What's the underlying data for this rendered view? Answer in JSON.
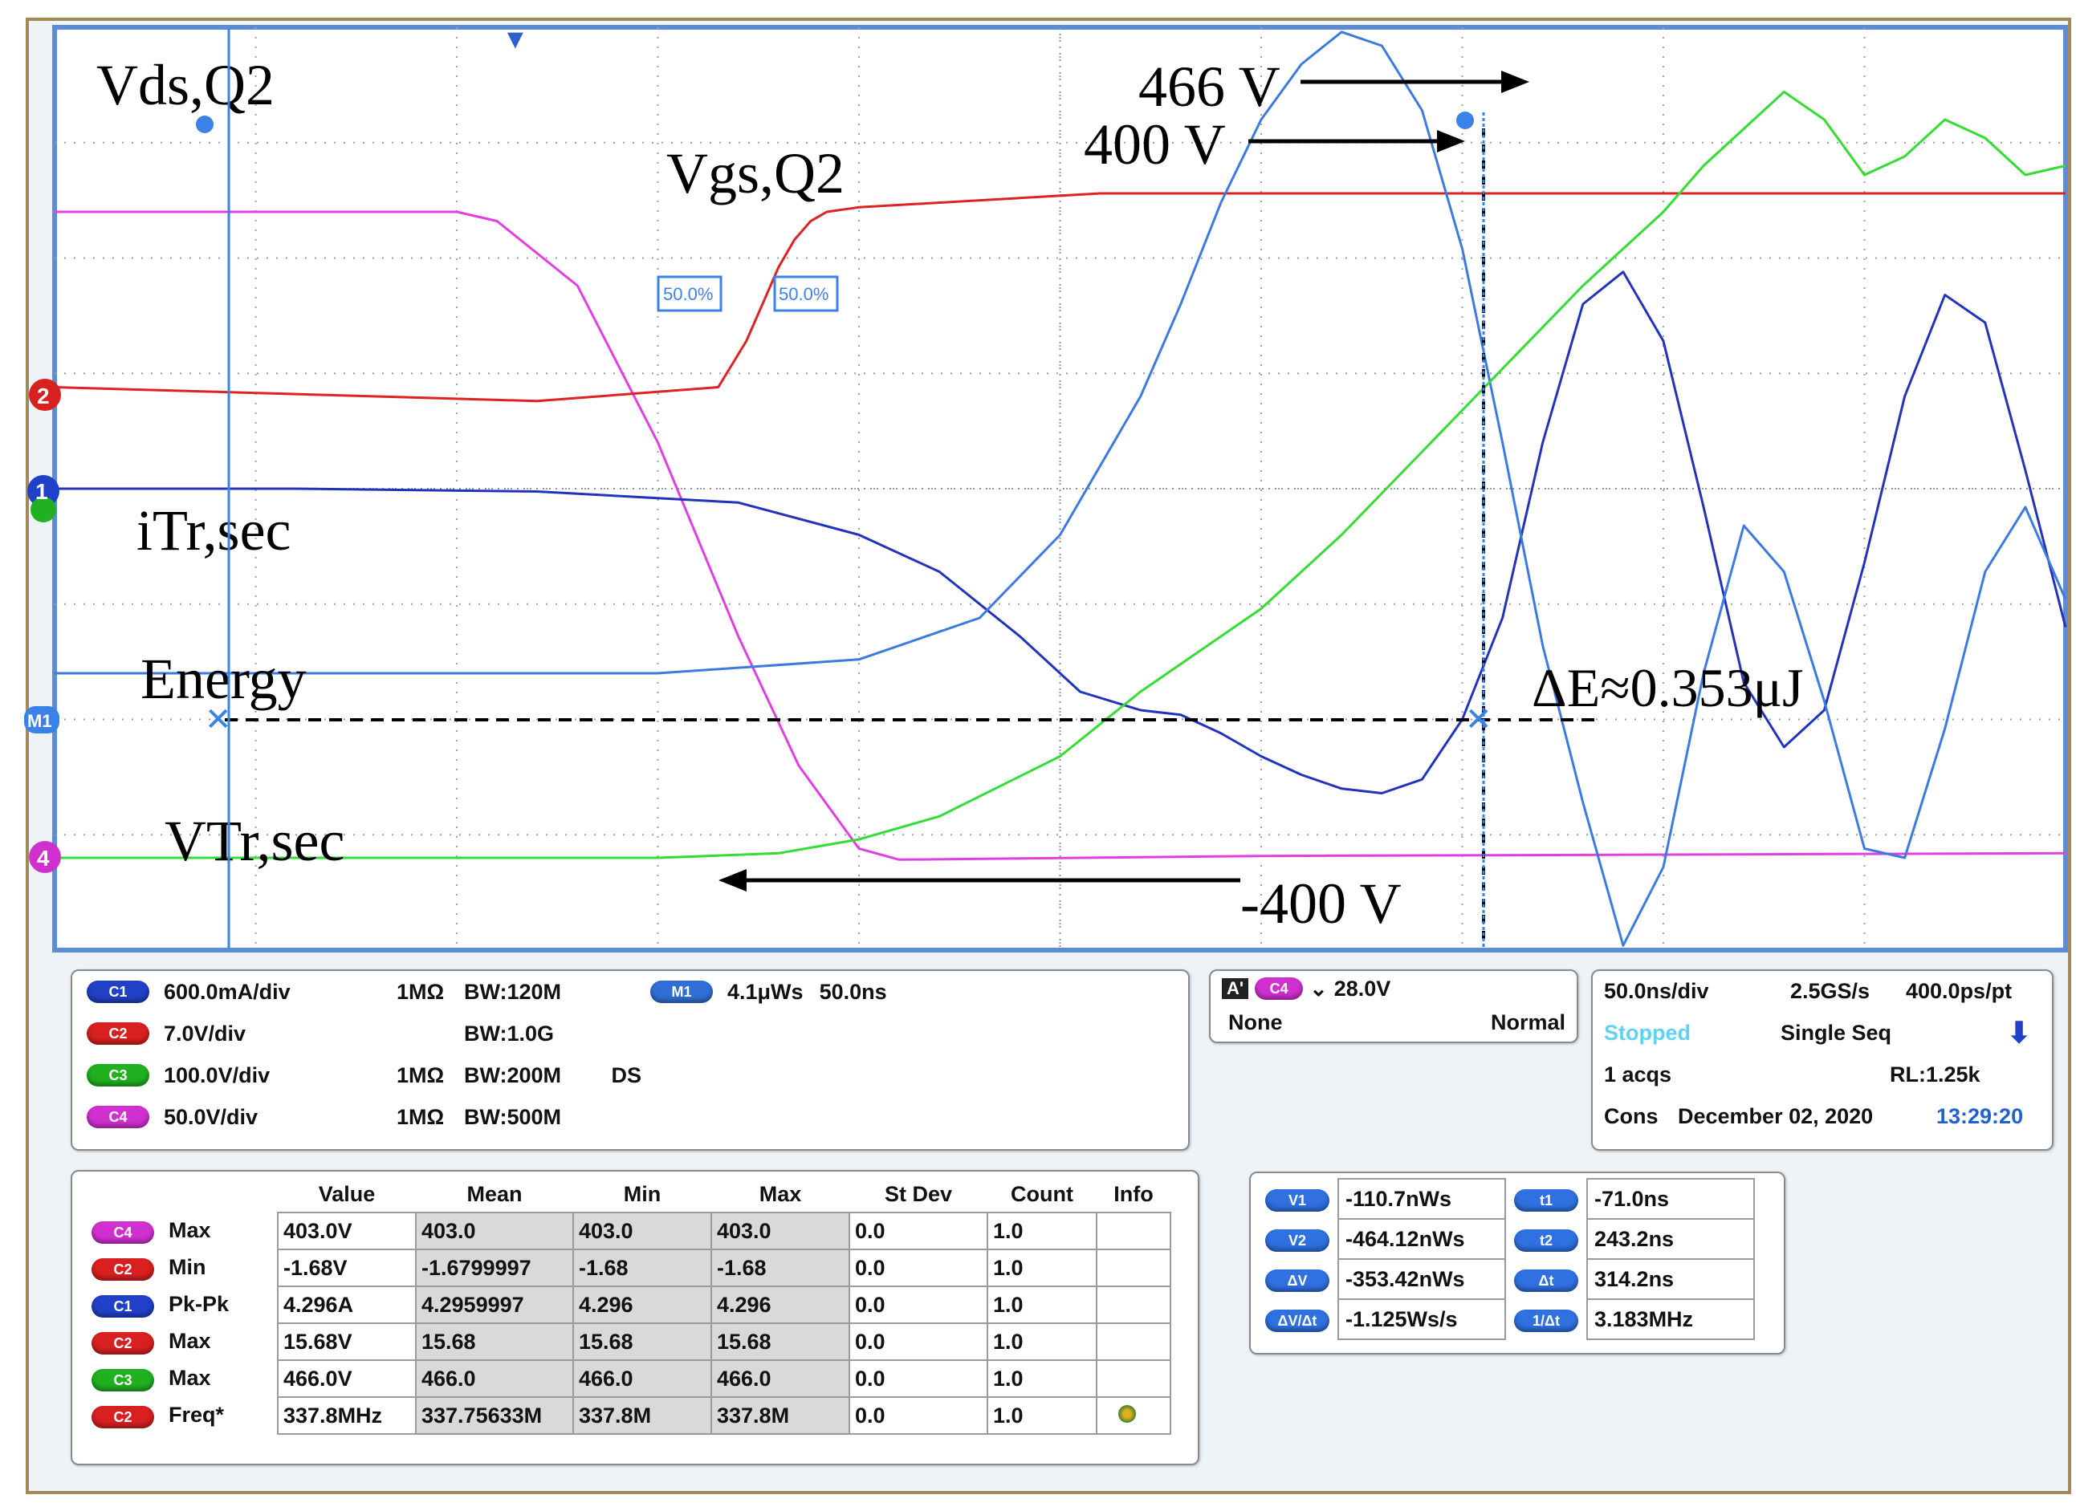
{
  "chart_data": {
    "type": "line",
    "title": "",
    "xlabel": "",
    "ylabel": "",
    "x_unit": "ns",
    "x_range": [
      0,
      500
    ],
    "series": [
      {
        "name": "Vds,Q2",
        "color": "#e040e0",
        "x": [
          0,
          100,
          110,
          130,
          150,
          170,
          185,
          200,
          210,
          300,
          500
        ],
        "y": [
          8.0,
          8.0,
          7.9,
          7.2,
          5.5,
          3.4,
          2.0,
          1.1,
          0.98,
          1.02,
          1.05
        ]
      },
      {
        "name": "Vgs,Q2",
        "color": "#dd2222",
        "x": [
          0,
          40,
          80,
          120,
          165,
          172,
          176,
          180,
          184,
          188,
          192,
          200,
          260,
          300,
          400,
          500
        ],
        "y": [
          6.1,
          6.05,
          6.0,
          5.95,
          6.1,
          6.6,
          7.0,
          7.4,
          7.7,
          7.9,
          8.0,
          8.05,
          8.2,
          8.2,
          8.2,
          8.2
        ]
      },
      {
        "name": "iTr,sec",
        "color": "#2233bb",
        "x": [
          0,
          60,
          120,
          170,
          200,
          220,
          240,
          255,
          270,
          280,
          290,
          300,
          310,
          320,
          330,
          340,
          350,
          360,
          370,
          380,
          390,
          400,
          410,
          420,
          430,
          440,
          450,
          460,
          470,
          480,
          490,
          500
        ],
        "y": [
          5.0,
          5.0,
          4.97,
          4.85,
          4.5,
          4.1,
          3.4,
          2.8,
          2.6,
          2.55,
          2.35,
          2.1,
          1.9,
          1.75,
          1.7,
          1.85,
          2.5,
          3.6,
          5.5,
          7.0,
          7.35,
          6.6,
          4.8,
          2.9,
          2.2,
          2.6,
          4.2,
          6.0,
          7.1,
          6.8,
          5.2,
          3.5
        ]
      },
      {
        "name": "Energy",
        "color": "#3d7ae0",
        "x": [
          0,
          100,
          150,
          200,
          230,
          250,
          270,
          280,
          290,
          300,
          310,
          320,
          330,
          340,
          350,
          360,
          370,
          380,
          390,
          400,
          410,
          420,
          430,
          440,
          450,
          460,
          470,
          480,
          490,
          500
        ],
        "y": [
          3.0,
          3.0,
          3.0,
          3.15,
          3.6,
          4.5,
          6.0,
          7.0,
          8.1,
          9.0,
          9.6,
          9.95,
          9.8,
          9.1,
          7.6,
          5.5,
          3.3,
          1.6,
          0.05,
          0.9,
          3.0,
          4.6,
          4.1,
          2.7,
          1.1,
          1.0,
          2.4,
          4.1,
          4.8,
          3.8
        ]
      },
      {
        "name": "VTr,sec",
        "color": "#33dd33",
        "x": [
          0,
          100,
          150,
          180,
          200,
          220,
          250,
          270,
          300,
          320,
          340,
          360,
          380,
          400,
          410,
          420,
          430,
          440,
          450,
          460,
          470,
          480,
          490,
          500
        ],
        "y": [
          1.0,
          1.0,
          1.0,
          1.05,
          1.2,
          1.45,
          2.1,
          2.8,
          3.7,
          4.5,
          5.4,
          6.3,
          7.2,
          8.0,
          8.5,
          8.9,
          9.3,
          9.0,
          8.4,
          8.6,
          9.0,
          8.8,
          8.4,
          8.5
        ]
      }
    ],
    "annotations": [
      "Vds,Q2",
      "Vgs,Q2",
      "iTr,sec",
      "Energy",
      "VTr,sec",
      "466 V",
      "400 V",
      "-400 V",
      "ΔE≈0.353μJ"
    ],
    "markers": {
      "top": "▼",
      "ch2": "2",
      "ch1": "1",
      "math": "M1",
      "ch4": "4",
      "edge_50": "50.0%"
    }
  },
  "channels": [
    {
      "id": "C1",
      "scale": "600.0mA/div",
      "imp": "1MΩ",
      "bw": "120M",
      "extra": "",
      "color": "#2040c8"
    },
    {
      "id": "C2",
      "scale": "7.0V/div",
      "imp": "",
      "bw": "1.0G",
      "extra": "",
      "color": "#d82020"
    },
    {
      "id": "C3",
      "scale": "100.0V/div",
      "imp": "1MΩ",
      "bw": "200M",
      "extra": "DS",
      "color": "#20b020"
    },
    {
      "id": "C4",
      "scale": "50.0V/div",
      "imp": "1MΩ",
      "bw": "500M",
      "extra": "",
      "color": "#d030d0"
    }
  ],
  "bw_prefix": "BW:",
  "math": {
    "id": "M1",
    "value": "4.1μWs",
    "time": "50.0ns"
  },
  "trigger": {
    "a": "A'",
    "ch": "C4",
    "level": "28.0V",
    "coupling": "None",
    "mode": "Normal"
  },
  "timebase": {
    "div": "50.0ns/div",
    "rate": "2.5GS/s",
    "pt": "400.0ps/pt",
    "status": "Stopped",
    "seq": "Single Seq",
    "acqs": "1 acqs",
    "rl": "RL:1.25k",
    "cons": "Cons",
    "date": "December 02, 2020",
    "time": "13:29:20"
  },
  "measurements": {
    "headers": [
      "Value",
      "Mean",
      "Min",
      "Max",
      "St Dev",
      "Count",
      "Info"
    ],
    "rows": [
      {
        "ch": "C4",
        "type": "Max",
        "value": "403.0V",
        "mean": "403.0",
        "min": "403.0",
        "max": "403.0",
        "stdev": "0.0",
        "count": "1.0"
      },
      {
        "ch": "C2",
        "type": "Min",
        "value": "-1.68V",
        "mean": "-1.6799997",
        "min": "-1.68",
        "max": "-1.68",
        "stdev": "0.0",
        "count": "1.0"
      },
      {
        "ch": "C1",
        "type": "Pk-Pk",
        "value": "4.296A",
        "mean": "4.2959997",
        "min": "4.296",
        "max": "4.296",
        "stdev": "0.0",
        "count": "1.0"
      },
      {
        "ch": "C2",
        "type": "Max",
        "value": "15.68V",
        "mean": "15.68",
        "min": "15.68",
        "max": "15.68",
        "stdev": "0.0",
        "count": "1.0"
      },
      {
        "ch": "C3",
        "type": "Max",
        "value": "466.0V",
        "mean": "466.0",
        "min": "466.0",
        "max": "466.0",
        "stdev": "0.0",
        "count": "1.0"
      },
      {
        "ch": "C2",
        "type": "Freq*",
        "value": "337.8MHz",
        "mean": "337.75633M",
        "min": "337.8M",
        "max": "337.8M",
        "stdev": "0.0",
        "count": "1.0"
      }
    ]
  },
  "cursors": {
    "v": [
      {
        "id": "V1",
        "val": "-110.7nWs"
      },
      {
        "id": "V2",
        "val": "-464.12nWs"
      },
      {
        "id": "ΔV",
        "val": "-353.42nWs"
      },
      {
        "id": "ΔV/Δt",
        "val": "-1.125Ws/s"
      }
    ],
    "t": [
      {
        "id": "t1",
        "val": "-71.0ns"
      },
      {
        "id": "t2",
        "val": "243.2ns"
      },
      {
        "id": "Δt",
        "val": "314.2ns"
      },
      {
        "id": "1/Δt",
        "val": "3.183MHz"
      }
    ]
  }
}
